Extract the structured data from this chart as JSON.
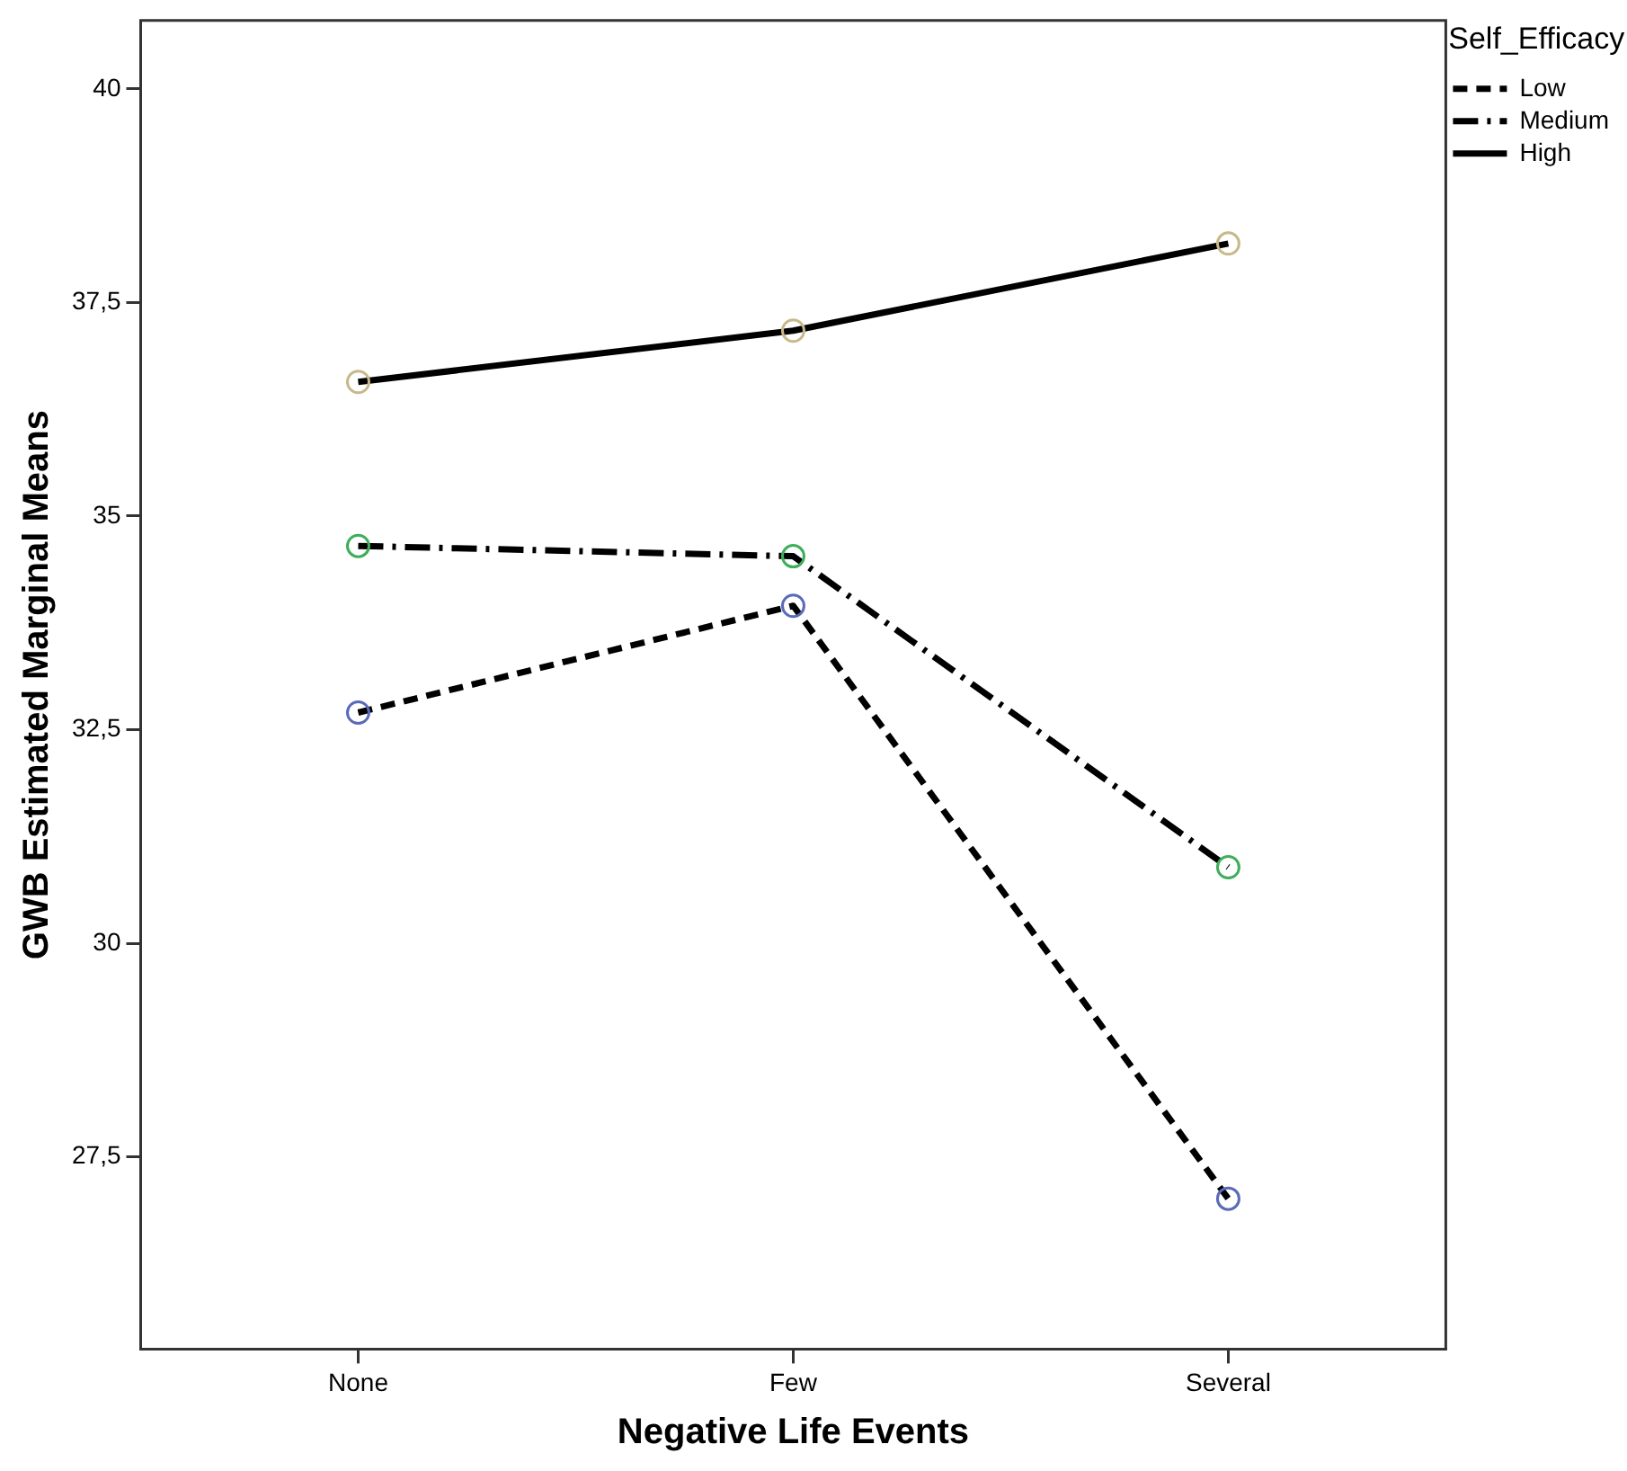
{
  "chart_data": {
    "type": "line",
    "xlabel": "Negative Life Events",
    "ylabel": "GWB Estimated Marginal Means",
    "legend_title": "Self_Efficacy",
    "categories": [
      "None",
      "Few",
      "Several"
    ],
    "ylim": [
      25.25,
      40.8
    ],
    "yticks": [
      {
        "value": 27.5,
        "label": "27,5"
      },
      30,
      {
        "value": 32.5,
        "label": "32,5"
      },
      35,
      {
        "value": 37.5,
        "label": "37,5"
      },
      40
    ],
    "grid": false,
    "legend": "top right",
    "marker": "circle",
    "series": [
      {
        "name": "Low",
        "color": "#000000",
        "colors": [
          "#5a6ab8",
          "#5a6ab8",
          "#5a6ab8"
        ],
        "line_style": "dashed",
        "values": [
          32.7,
          33.95,
          27.01
        ]
      },
      {
        "name": "Medium",
        "color": "#000000",
        "colors": [
          "#3fae5a",
          "#3fae5a",
          "#3fae5a"
        ],
        "line_style": "dashdot",
        "values": [
          34.65,
          34.53,
          30.89
        ]
      },
      {
        "name": "High",
        "color": "#000000",
        "colors": [
          "#c8b88a",
          "#c8b88a",
          "#c8b88a"
        ],
        "line_style": "solid",
        "values": [
          36.57,
          37.17,
          38.19
        ]
      }
    ]
  }
}
